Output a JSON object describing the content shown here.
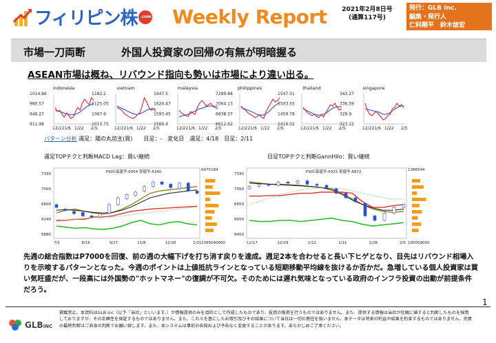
{
  "header": {
    "logo_text": "フィリピン株",
    "logo_com": ".com",
    "weekly_title": "Weekly Report",
    "date": "2021年2月8日号",
    "issue": "(通算117号)",
    "publisher_lines": [
      "発行：GLB Inc.",
      "編集・発行人",
      "仁科剛平　鈴木信宏"
    ]
  },
  "title_bar": {
    "main": "市場一刀両断",
    "sub": "外国人投資家の回帰の有無が明暗握る"
  },
  "subheading": "ASEAN市場は概ね、リバウンド指向も勢いは市場により違い出る。",
  "mini_charts": [
    {
      "name": "indonesia",
      "ticks": [
        "1014.86",
        "980.57",
        "946.27",
        "911.98"
      ],
      "x_labels": [
        "12/22",
        "1/6",
        "1/22",
        "2/5"
      ],
      "series": [
        0.55,
        0.4,
        0.45,
        0.3,
        0.2,
        0.35,
        0.25,
        0.15,
        0.2,
        0.4,
        0.55,
        0.45,
        0.7,
        0.85,
        0.75,
        0.65,
        0.9,
        0.8
      ],
      "ma": [
        0.45,
        0.42,
        0.4,
        0.38,
        0.34,
        0.32,
        0.3,
        0.28,
        0.29,
        0.3,
        0.34,
        0.38,
        0.45,
        0.52,
        0.58,
        0.62,
        0.66,
        0.7
      ]
    },
    {
      "name": "vietnam",
      "ticks": [
        "1182.2",
        "1125.05",
        "1067.9",
        "1010.75"
      ],
      "x_labels": [
        "12/22",
        "1/6",
        "1/22",
        "2/5"
      ],
      "series": [
        0.55,
        0.5,
        0.45,
        0.35,
        0.28,
        0.22,
        0.18,
        0.15,
        0.2,
        0.3,
        0.35,
        0.6,
        0.9,
        0.75,
        0.55,
        0.45,
        0.5,
        0.4
      ],
      "ma": [
        0.6,
        0.56,
        0.52,
        0.48,
        0.44,
        0.4,
        0.36,
        0.33,
        0.3,
        0.3,
        0.32,
        0.35,
        0.4,
        0.45,
        0.48,
        0.5,
        0.5,
        0.5
      ]
    },
    {
      "name": "malaysia",
      "ticks": [
        "1647.5",
        "1620.47",
        "1593.45",
        "1566.4"
      ],
      "x_labels": [
        "12/22",
        "1/6",
        "1/22",
        "2/5"
      ],
      "series": [
        0.45,
        0.35,
        0.3,
        0.25,
        0.22,
        0.4,
        0.35,
        0.3,
        0.55,
        0.7,
        0.8,
        0.72,
        0.6,
        0.65,
        0.7,
        0.58,
        0.55,
        0.5
      ],
      "ma": [
        0.2,
        0.24,
        0.26,
        0.28,
        0.3,
        0.34,
        0.38,
        0.42,
        0.46,
        0.5,
        0.52,
        0.55,
        0.58,
        0.6,
        0.6,
        0.6,
        0.6,
        0.6
      ]
    },
    {
      "name": "philippines",
      "ticks": [
        "7289.88",
        "7064.13",
        "6838.37",
        "6612.62"
      ],
      "x_labels": [
        "12/22",
        "1/6",
        "1/22",
        "2/5"
      ],
      "series": [
        0.6,
        0.5,
        0.45,
        0.35,
        0.3,
        0.25,
        0.18,
        0.22,
        0.28,
        0.2,
        0.15,
        0.4,
        0.55,
        0.7,
        0.85,
        0.75,
        0.8,
        0.9
      ],
      "ma": [
        0.55,
        0.52,
        0.48,
        0.45,
        0.42,
        0.38,
        0.34,
        0.3,
        0.28,
        0.27,
        0.28,
        0.32,
        0.38,
        0.46,
        0.55,
        0.62,
        0.68,
        0.72
      ]
    },
    {
      "name": "thailand",
      "ticks": [
        "1547.31",
        "1503.55",
        "1459.78",
        "1416.02"
      ],
      "x_labels": [
        "12/22",
        "1/6",
        "1/22",
        "2/5"
      ],
      "series": [
        0.55,
        0.45,
        0.35,
        0.3,
        0.25,
        0.3,
        0.22,
        0.18,
        0.3,
        0.2,
        0.35,
        0.5,
        0.65,
        0.6,
        0.7,
        0.55,
        0.45,
        0.5
      ],
      "ma": [
        0.5,
        0.46,
        0.42,
        0.38,
        0.34,
        0.3,
        0.28,
        0.27,
        0.28,
        0.3,
        0.34,
        0.4,
        0.46,
        0.52,
        0.56,
        0.58,
        0.58,
        0.56
      ]
    },
    {
      "name": "singapore",
      "ticks": [
        "343.27",
        "336.59",
        "329.9",
        "323.22"
      ],
      "x_labels": [
        "12/22",
        "1/6",
        "1/22",
        "2/5"
      ],
      "series": [
        0.7,
        0.45,
        0.3,
        0.25,
        0.35,
        0.4,
        0.3,
        0.2,
        0.1,
        0.15,
        0.25,
        0.3,
        0.5,
        0.55,
        0.7,
        0.6,
        0.65,
        0.55
      ],
      "ma": [
        0.5,
        0.48,
        0.46,
        0.44,
        0.42,
        0.4,
        0.38,
        0.34,
        0.3,
        0.3,
        0.32,
        0.36,
        0.42,
        0.48,
        0.54,
        0.58,
        0.6,
        0.6
      ]
    }
  ],
  "pattern": {
    "link": "パターン分析",
    "text": "週足：陽の丸坊主(買)　　日足：-　変化日　週足：4/18　日足：2/11"
  },
  "left_chart": {
    "title": "週足TOPテクと判断MACD Lag：買い継続",
    "header_label": "PSIの高値予:6954 安値予:6340",
    "y_ticks": [
      "7330",
      "7000",
      "6600",
      "6240",
      "5880"
    ],
    "x_labels": [
      "7/5",
      "8/16",
      "9/27",
      "11/8",
      "12/20",
      "1/31"
    ],
    "right_top": "6975184",
    "right_bottom": "1095040000",
    "line_color": "#e53030"
  },
  "right_chart": {
    "title": "日足TOPテクと判断GannHilo：買い継続",
    "header_label": "PSIの高値予:6925 安値予:6872",
    "y_ticks": [
      "7330",
      "7050",
      "6850",
      "6650",
      "6400"
    ],
    "x_labels": [
      "12/17",
      "12/29",
      "1/11",
      "1/21",
      "1/28",
      "2/5"
    ],
    "right_top": "1386594",
    "right_bottom": "195059000",
    "line_color": "#e53030"
  },
  "paragraph": "先週の総合指数はP7000を回復、前の週の大幅下げを打ち消す戻りを達成。週足2本を合わせると長い下ヒゲとなり、目先はリバウンド相場入りを示唆するパターンとなった。今週のポイントは上値抵抗ラインとなっている短期移動平均線を抜けるか否かだ。急増している個人投資家は買い気旺盛だが、一段高には外国勢の\"ホットマネー\"の復調が不可欠。そのためには遅れ気味となっている政府のインフラ投資の出動が前提条件だろう。",
  "footer": {
    "logo_text": "GLB",
    "logo_small": "INC",
    "disclaimer": "掲載禁止。本資料はGLB.inc（以下「当社」といいます。）が情報提供のみを目的として作成したものであり、投資の推奨を行うものではありません。また、提供する情報は当社が信頼に値すると判断したものを採用しておりますが、その正確性を保証するものではありません。また、これらを基にしたお取引及びその結果について当社は一切の責任を負いません。本データは将来の利益や結果を約束するものではありません。売買の最終判断はご自身の判断でお願い致します。また、本システムは事前の告知および予告なく変更することがあります。あらかじめご了承ください。",
    "page": "1"
  }
}
